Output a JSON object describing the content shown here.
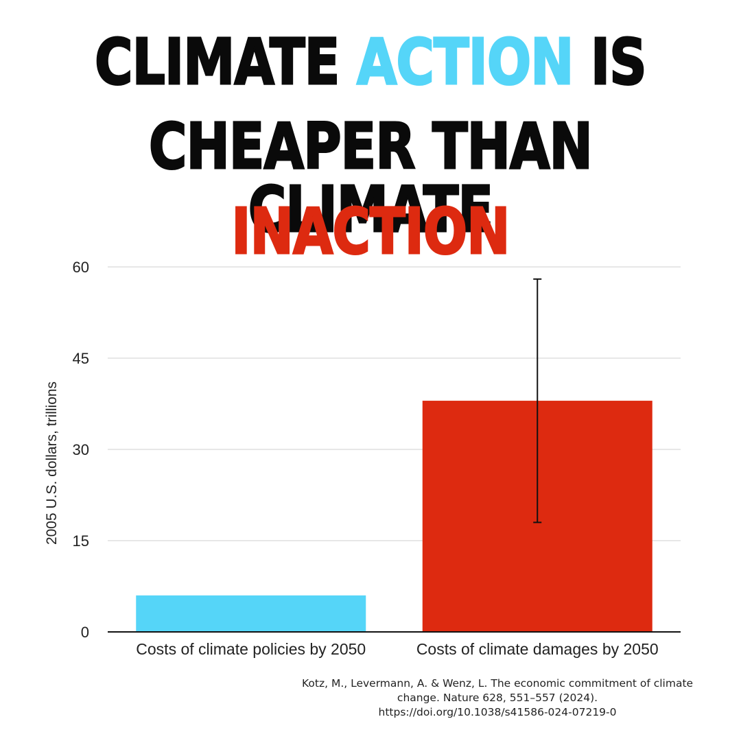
{
  "headline": {
    "line1_pre": "CLIMATE ",
    "line1_action": "ACTION",
    "line1_post": " IS",
    "line2": "CHEAPER THAN CLIMATE",
    "line3": "INACTION",
    "action_color": "#55d5f8",
    "inaction_color": "#dd2a10"
  },
  "chart_data": {
    "type": "bar",
    "categories": [
      "Costs of climate policies by 2050",
      "Costs of climate damages by 2050"
    ],
    "values": [
      6,
      38
    ],
    "error_bars": [
      null,
      [
        18,
        58
      ]
    ],
    "colors": [
      "#55d5f8",
      "#dd2a10"
    ],
    "ylabel": "2005 U.S. dollars, trillions",
    "xlabel": "",
    "ylim": [
      0,
      60
    ],
    "yticks": [
      0,
      15,
      30,
      45,
      60
    ],
    "grid": true
  },
  "citation": {
    "line1": "Kotz, M., Levermann, A. & Wenz, L. The economic commitment of climate",
    "line2": "change. Nature 628, 551–557 (2024).",
    "line3": "https://doi.org/10.1038/s41586-024-07219-0"
  }
}
